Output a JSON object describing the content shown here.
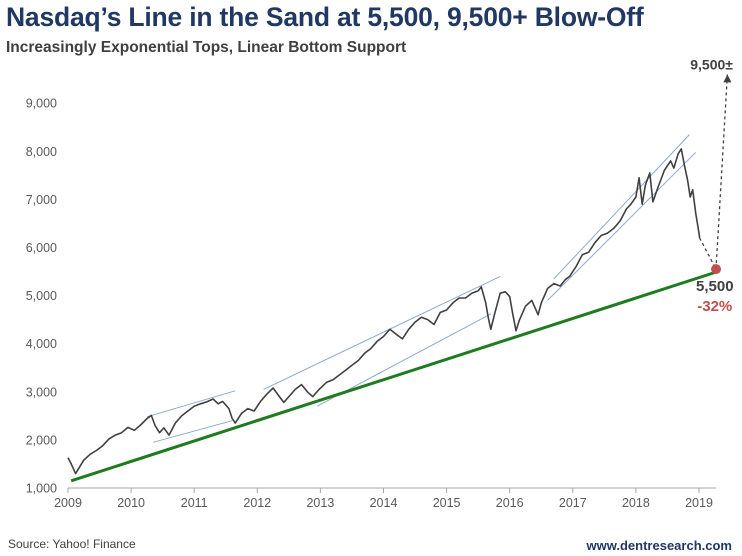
{
  "header": {
    "title": "Nasdaq’s Line in the Sand at 5,500, 9,500+ Blow-Off",
    "subtitle": "Increasingly Exponential Tops, Linear Bottom Support"
  },
  "footer": {
    "source": "Source: Yahoo! Finance",
    "website": "www.dentresearch.com"
  },
  "colors": {
    "title": "#1f3864",
    "price_line": "#404040",
    "support_line": "#1e7b1e",
    "channel_lines": "#8ea9c8",
    "target_marker": "#c0504d",
    "percent_label": "#c0504d"
  },
  "chart_data": {
    "type": "line",
    "title": "Nasdaq’s Line in the Sand at 5,500, 9,500+ Blow-Off",
    "subtitle": "Increasingly Exponential Tops, Linear Bottom Support",
    "xlim": [
      2009,
      2019.3
    ],
    "ylim": [
      1000,
      9500
    ],
    "x_ticks": [
      "2009",
      "2010",
      "2011",
      "2012",
      "2013",
      "2014",
      "2015",
      "2016",
      "2017",
      "2018",
      "2019"
    ],
    "y_ticks": [
      "1,000",
      "2,000",
      "3,000",
      "4,000",
      "5,000",
      "6,000",
      "7,000",
      "8,000",
      "9,000"
    ],
    "grid": false,
    "series": [
      {
        "kind": "price",
        "points": [
          [
            2009.0,
            1630
          ],
          [
            2009.05,
            1500
          ],
          [
            2009.12,
            1300
          ],
          [
            2009.18,
            1430
          ],
          [
            2009.25,
            1580
          ],
          [
            2009.35,
            1700
          ],
          [
            2009.45,
            1780
          ],
          [
            2009.55,
            1880
          ],
          [
            2009.65,
            2020
          ],
          [
            2009.75,
            2100
          ],
          [
            2009.85,
            2150
          ],
          [
            2009.95,
            2260
          ],
          [
            2010.05,
            2200
          ],
          [
            2010.15,
            2310
          ],
          [
            2010.25,
            2440
          ],
          [
            2010.32,
            2510
          ],
          [
            2010.38,
            2300
          ],
          [
            2010.45,
            2150
          ],
          [
            2010.52,
            2250
          ],
          [
            2010.6,
            2100
          ],
          [
            2010.7,
            2350
          ],
          [
            2010.8,
            2500
          ],
          [
            2010.9,
            2600
          ],
          [
            2011.0,
            2700
          ],
          [
            2011.1,
            2750
          ],
          [
            2011.2,
            2790
          ],
          [
            2011.3,
            2850
          ],
          [
            2011.38,
            2750
          ],
          [
            2011.45,
            2800
          ],
          [
            2011.55,
            2650
          ],
          [
            2011.6,
            2450
          ],
          [
            2011.65,
            2350
          ],
          [
            2011.75,
            2550
          ],
          [
            2011.85,
            2650
          ],
          [
            2011.95,
            2600
          ],
          [
            2012.05,
            2800
          ],
          [
            2012.15,
            2950
          ],
          [
            2012.25,
            3080
          ],
          [
            2012.35,
            2900
          ],
          [
            2012.42,
            2780
          ],
          [
            2012.5,
            2900
          ],
          [
            2012.6,
            3050
          ],
          [
            2012.7,
            3150
          ],
          [
            2012.8,
            2990
          ],
          [
            2012.88,
            2900
          ],
          [
            2012.98,
            3050
          ],
          [
            2013.1,
            3200
          ],
          [
            2013.2,
            3250
          ],
          [
            2013.3,
            3350
          ],
          [
            2013.4,
            3450
          ],
          [
            2013.5,
            3550
          ],
          [
            2013.6,
            3650
          ],
          [
            2013.7,
            3800
          ],
          [
            2013.8,
            3900
          ],
          [
            2013.9,
            4050
          ],
          [
            2014.0,
            4150
          ],
          [
            2014.1,
            4300
          ],
          [
            2014.2,
            4200
          ],
          [
            2014.3,
            4100
          ],
          [
            2014.4,
            4300
          ],
          [
            2014.5,
            4450
          ],
          [
            2014.6,
            4550
          ],
          [
            2014.7,
            4500
          ],
          [
            2014.8,
            4400
          ],
          [
            2014.9,
            4650
          ],
          [
            2015.0,
            4700
          ],
          [
            2015.1,
            4850
          ],
          [
            2015.2,
            4950
          ],
          [
            2015.3,
            4950
          ],
          [
            2015.4,
            5050
          ],
          [
            2015.5,
            5100
          ],
          [
            2015.55,
            5180
          ],
          [
            2015.62,
            4850
          ],
          [
            2015.66,
            4550
          ],
          [
            2015.7,
            4300
          ],
          [
            2015.76,
            4620
          ],
          [
            2015.85,
            5050
          ],
          [
            2015.93,
            5080
          ],
          [
            2016.0,
            4980
          ],
          [
            2016.05,
            4600
          ],
          [
            2016.1,
            4270
          ],
          [
            2016.15,
            4480
          ],
          [
            2016.25,
            4780
          ],
          [
            2016.35,
            4900
          ],
          [
            2016.45,
            4600
          ],
          [
            2016.5,
            4850
          ],
          [
            2016.6,
            5150
          ],
          [
            2016.7,
            5250
          ],
          [
            2016.8,
            5200
          ],
          [
            2016.88,
            5330
          ],
          [
            2016.95,
            5400
          ],
          [
            2017.05,
            5600
          ],
          [
            2017.15,
            5850
          ],
          [
            2017.25,
            5900
          ],
          [
            2017.35,
            6100
          ],
          [
            2017.45,
            6250
          ],
          [
            2017.55,
            6300
          ],
          [
            2017.65,
            6400
          ],
          [
            2017.75,
            6550
          ],
          [
            2017.85,
            6800
          ],
          [
            2017.92,
            6900
          ],
          [
            2018.0,
            7050
          ],
          [
            2018.05,
            7450
          ],
          [
            2018.1,
            6900
          ],
          [
            2018.15,
            7300
          ],
          [
            2018.22,
            7550
          ],
          [
            2018.27,
            6950
          ],
          [
            2018.35,
            7250
          ],
          [
            2018.45,
            7600
          ],
          [
            2018.55,
            7800
          ],
          [
            2018.6,
            7650
          ],
          [
            2018.67,
            7950
          ],
          [
            2018.72,
            8050
          ],
          [
            2018.77,
            7700
          ],
          [
            2018.82,
            7400
          ],
          [
            2018.86,
            7050
          ],
          [
            2018.9,
            7200
          ],
          [
            2018.95,
            6700
          ],
          [
            2019.0,
            6300
          ],
          [
            2019.01,
            6200
          ]
        ]
      },
      {
        "kind": "projection_down",
        "points": [
          [
            2019.01,
            6200
          ],
          [
            2019.27,
            5550
          ]
        ]
      },
      {
        "kind": "projection_up",
        "points": [
          [
            2019.27,
            5550
          ],
          [
            2019.45,
            9600
          ]
        ]
      },
      {
        "kind": "support",
        "points": [
          [
            2009.05,
            1150
          ],
          [
            2019.3,
            5500
          ]
        ]
      },
      {
        "kind": "channel",
        "points": [
          [
            2010.25,
            2480
          ],
          [
            2011.65,
            3020
          ]
        ]
      },
      {
        "kind": "channel",
        "points": [
          [
            2010.35,
            1950
          ],
          [
            2011.6,
            2400
          ]
        ]
      },
      {
        "kind": "channel",
        "points": [
          [
            2012.1,
            3050
          ],
          [
            2015.85,
            5400
          ]
        ]
      },
      {
        "kind": "channel",
        "points": [
          [
            2012.95,
            2700
          ],
          [
            2015.7,
            4620
          ]
        ]
      },
      {
        "kind": "channel",
        "points": [
          [
            2016.7,
            5350
          ],
          [
            2018.85,
            8350
          ]
        ]
      },
      {
        "kind": "channel",
        "points": [
          [
            2016.6,
            4900
          ],
          [
            2018.95,
            7980
          ]
        ]
      }
    ],
    "annotations": [
      {
        "text": "9,500±",
        "x": 2019.2,
        "y": 9700,
        "role": "target_high"
      },
      {
        "text": "5,500",
        "x": 2019.25,
        "y": 5100,
        "role": "target_low"
      },
      {
        "text": "-32%",
        "x": 2019.25,
        "y": 4680,
        "role": "percent_drop"
      }
    ],
    "marker": {
      "x": 2019.27,
      "y": 5550
    }
  }
}
